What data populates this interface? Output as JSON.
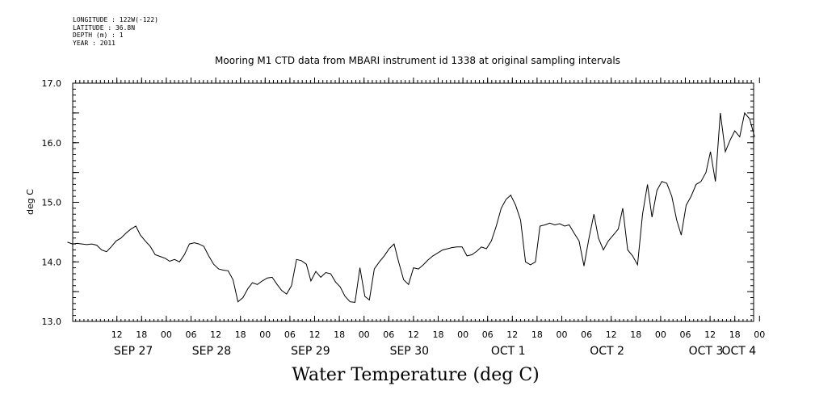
{
  "header": {
    "meta_lines": [
      "LONGITUDE : 122W(-122)",
      "LATITUDE : 36.8N",
      "DEPTH (m) : 1",
      "YEAR : 2011"
    ],
    "title": "Mooring M1 CTD data from MBARI instrument id 1338 at original sampling intervals"
  },
  "footer": {
    "label": "Water Temperature (deg C)"
  },
  "chart_data": {
    "type": "line",
    "title": "Mooring M1 CTD data from MBARI instrument id 1338 at original sampling intervals",
    "ylabel": "deg C",
    "xlabel": "Water Temperature (deg C)",
    "ylim": [
      13.0,
      17.0
    ],
    "yticks": [
      "13.0",
      "14.0",
      "15.0",
      "16.0",
      "17.0"
    ],
    "xlim_hours": [
      0,
      162
    ],
    "x_hour_ticks": [
      {
        "h": 12,
        "label": "12"
      },
      {
        "h": 18,
        "label": "18"
      },
      {
        "h": 24,
        "label": "00"
      },
      {
        "h": 30,
        "label": "06"
      },
      {
        "h": 36,
        "label": "12"
      },
      {
        "h": 42,
        "label": "18"
      },
      {
        "h": 48,
        "label": "00"
      },
      {
        "h": 54,
        "label": "06"
      },
      {
        "h": 60,
        "label": "12"
      },
      {
        "h": 66,
        "label": "18"
      },
      {
        "h": 72,
        "label": "00"
      },
      {
        "h": 78,
        "label": "06"
      },
      {
        "h": 84,
        "label": "12"
      },
      {
        "h": 90,
        "label": "18"
      },
      {
        "h": 96,
        "label": "00"
      },
      {
        "h": 102,
        "label": "06"
      },
      {
        "h": 108,
        "label": "12"
      },
      {
        "h": 114,
        "label": "18"
      },
      {
        "h": 120,
        "label": "00"
      },
      {
        "h": 126,
        "label": "06"
      },
      {
        "h": 132,
        "label": "12"
      },
      {
        "h": 138,
        "label": "18"
      },
      {
        "h": 144,
        "label": "00"
      },
      {
        "h": 150,
        "label": "06"
      },
      {
        "h": 156,
        "label": "12"
      },
      {
        "h": 162,
        "label": "18"
      },
      {
        "h": 168,
        "label": "00"
      }
    ],
    "x_day_labels": [
      {
        "h": 16,
        "label": "SEP 27"
      },
      {
        "h": 35,
        "label": "SEP 28"
      },
      {
        "h": 59,
        "label": "SEP 29"
      },
      {
        "h": 83,
        "label": "SEP 30"
      },
      {
        "h": 107,
        "label": "OCT 1"
      },
      {
        "h": 131,
        "label": "OCT 2"
      },
      {
        "h": 155,
        "label": "OCT 3"
      },
      {
        "h": 163,
        "label": "OCT 4"
      }
    ],
    "series": [
      {
        "color": "#000000",
        "x_hours": [
          0.0,
          1.2,
          2.4,
          3.5,
          4.7,
          5.9,
          7.1,
          8.3,
          9.5,
          10.6,
          11.8,
          13.0,
          14.2,
          15.4,
          16.6,
          17.7,
          18.9,
          20.1,
          21.3,
          22.5,
          23.7,
          24.8,
          26.0,
          27.2,
          28.4,
          29.6,
          30.8,
          31.9,
          33.1,
          34.3,
          35.5,
          36.7,
          37.9,
          39.0,
          40.2,
          41.4,
          42.6,
          43.8,
          44.9,
          46.1,
          47.3,
          48.5,
          49.7,
          50.9,
          52.0,
          53.2,
          54.4,
          55.6,
          56.8,
          58.0,
          59.1,
          60.3,
          61.5,
          62.7,
          63.9,
          65.1,
          66.2,
          67.4,
          68.6,
          69.8,
          71.0,
          72.2,
          73.3,
          74.5,
          75.7,
          76.9,
          78.1,
          79.3,
          80.4,
          81.6,
          82.8,
          84.0,
          85.2,
          86.4,
          87.5,
          88.7,
          89.9,
          91.1,
          92.3,
          93.4,
          94.6,
          95.8,
          97.0,
          98.2,
          99.4,
          100.5,
          101.7,
          102.9,
          104.1,
          105.3,
          106.5,
          107.6,
          108.8,
          110.0,
          111.2,
          112.4,
          113.6,
          114.7,
          115.9,
          117.1,
          118.3,
          119.5,
          120.7,
          121.8,
          123.0,
          124.2,
          125.4,
          126.6,
          127.8,
          128.9,
          130.1,
          131.3,
          132.5,
          133.7,
          134.8,
          136.0,
          137.2,
          138.4,
          139.6,
          140.8,
          141.9,
          143.1,
          144.3,
          145.5,
          146.7,
          147.9,
          149.0,
          150.2,
          151.4,
          152.6,
          153.8,
          155.0,
          156.1,
          157.3,
          158.5,
          159.7,
          160.9,
          162.0,
          163.2,
          164.4,
          165.6,
          166.8
        ],
        "y": [
          14.33,
          14.3,
          14.31,
          14.3,
          14.29,
          14.3,
          14.28,
          14.2,
          14.17,
          14.25,
          14.35,
          14.4,
          14.48,
          14.55,
          14.6,
          14.45,
          14.35,
          14.26,
          14.12,
          14.09,
          14.06,
          14.01,
          14.04,
          14.0,
          14.12,
          14.3,
          14.32,
          14.3,
          14.26,
          14.1,
          13.96,
          13.88,
          13.86,
          13.85,
          13.7,
          13.33,
          13.4,
          13.55,
          13.65,
          13.62,
          13.68,
          13.73,
          13.74,
          13.62,
          13.52,
          13.46,
          13.6,
          14.04,
          14.02,
          13.96,
          13.68,
          13.84,
          13.74,
          13.82,
          13.8,
          13.66,
          13.58,
          13.42,
          13.33,
          13.32,
          13.9,
          13.42,
          13.36,
          13.88,
          14.0,
          14.1,
          14.22,
          14.3,
          14.0,
          13.7,
          13.62,
          13.9,
          13.88,
          13.95,
          14.03,
          14.1,
          14.15,
          14.2,
          14.22,
          14.24,
          14.25,
          14.25,
          14.1,
          14.12,
          14.18,
          14.25,
          14.22,
          14.35,
          14.6,
          14.9,
          15.05,
          15.12,
          14.95,
          14.7,
          14.0,
          13.95,
          14.0,
          14.6,
          14.62,
          14.65,
          14.62,
          14.64,
          14.6,
          14.62,
          14.48,
          14.35,
          13.93,
          14.4,
          14.8,
          14.4,
          14.2,
          14.35,
          14.45,
          14.55,
          14.9,
          14.2,
          14.1,
          13.95,
          14.8,
          15.3,
          14.75,
          15.2,
          15.35,
          15.32,
          15.1,
          14.7,
          14.45,
          14.95,
          15.1,
          15.3,
          15.35,
          15.5,
          15.85,
          15.35,
          16.5,
          15.85,
          16.05,
          16.2,
          16.1,
          16.5,
          16.4,
          16.1
        ]
      }
    ]
  }
}
